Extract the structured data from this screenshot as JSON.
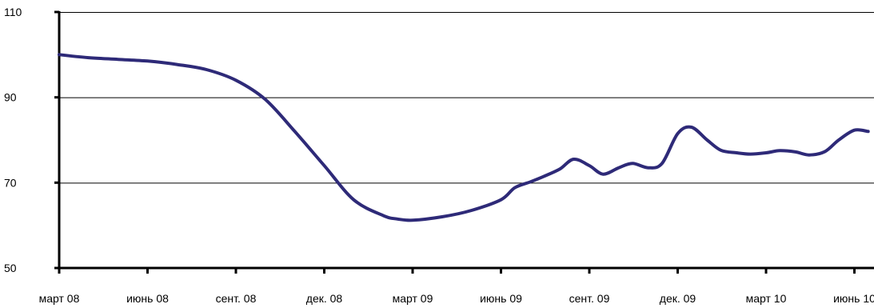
{
  "chart_data": {
    "type": "line",
    "title": "",
    "xlabel": "",
    "ylabel": "",
    "x_ticks": [
      "март 08",
      "июнь 08",
      "сент. 08",
      "дек. 08",
      "март 09",
      "июнь 09",
      "сент. 09",
      "дек. 09",
      "март 10",
      "июнь 10"
    ],
    "y_ticks": [
      "50",
      "70",
      "90",
      "110"
    ],
    "ylim": [
      50,
      110
    ],
    "xlim": [
      "2008-03",
      "2010-06"
    ],
    "grid": true,
    "legend": "none",
    "colors": {
      "line": "#2e2a78",
      "grid": "#000000",
      "axis": "#000000"
    },
    "series": [
      {
        "x": [
          "2008-03-01",
          "2008-04-01",
          "2008-05-01",
          "2008-06-01",
          "2008-07-01",
          "2008-08-01",
          "2008-09-01",
          "2008-10-01",
          "2008-11-01",
          "2008-12-01",
          "2009-01-01",
          "2009-02-01",
          "2009-02-15",
          "2009-03-01",
          "2009-04-01",
          "2009-05-01",
          "2009-06-01",
          "2009-06-15",
          "2009-07-01",
          "2009-07-15",
          "2009-08-01",
          "2009-08-15",
          "2009-09-01",
          "2009-09-15",
          "2009-10-01",
          "2009-10-15",
          "2009-11-01",
          "2009-11-15",
          "2009-12-01",
          "2009-12-15",
          "2010-01-01",
          "2010-01-15",
          "2010-02-01",
          "2010-02-15",
          "2010-03-01",
          "2010-03-15",
          "2010-04-01",
          "2010-04-15",
          "2010-05-01",
          "2010-05-15",
          "2010-06-01",
          "2010-06-15"
        ],
        "values": [
          100,
          99.3,
          98.9,
          98.5,
          97.7,
          96.5,
          94,
          89.5,
          82,
          74,
          66,
          62.3,
          61.5,
          61.2,
          62,
          63.5,
          66,
          68.8,
          70.2,
          71.5,
          73.2,
          75.5,
          74,
          72,
          73.5,
          74.5,
          73.5,
          74.5,
          81.5,
          83,
          80,
          77.6,
          77,
          76.7,
          77,
          77.5,
          77.2,
          76.5,
          77.3,
          80,
          82.3,
          82
        ]
      }
    ]
  }
}
